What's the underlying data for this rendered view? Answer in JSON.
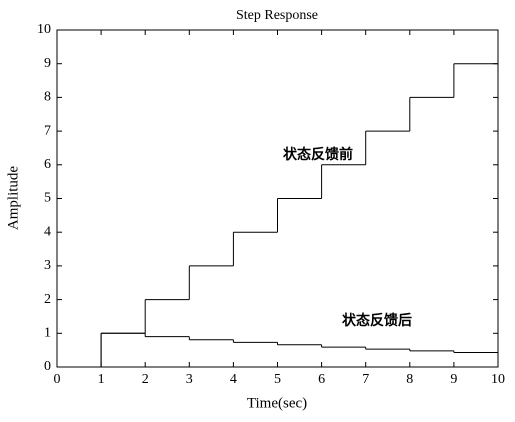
{
  "chart_data": {
    "type": "step",
    "title": "Step Response",
    "xlabel": "Time(sec)",
    "ylabel": "Amplitude",
    "x": [
      0,
      1,
      2,
      3,
      4,
      5,
      6,
      7,
      8,
      9,
      10
    ],
    "series": [
      {
        "name": "状态反馈前",
        "color": "#000000",
        "values": [
          0,
          1,
          2,
          3,
          4,
          5,
          6,
          7,
          8,
          9,
          9
        ]
      },
      {
        "name": "状态反馈后",
        "color": "#000000",
        "values": [
          0,
          1,
          0.9,
          0.81,
          0.73,
          0.66,
          0.59,
          0.53,
          0.48,
          0.43,
          0.39
        ]
      }
    ],
    "xlim": [
      0,
      10
    ],
    "xticks": [
      0,
      1,
      2,
      3,
      4,
      5,
      6,
      7,
      8,
      9,
      10
    ],
    "ylim": [
      0,
      10
    ],
    "yticks": [
      0,
      1,
      2,
      3,
      4,
      5,
      6,
      7,
      8,
      9,
      10
    ]
  }
}
